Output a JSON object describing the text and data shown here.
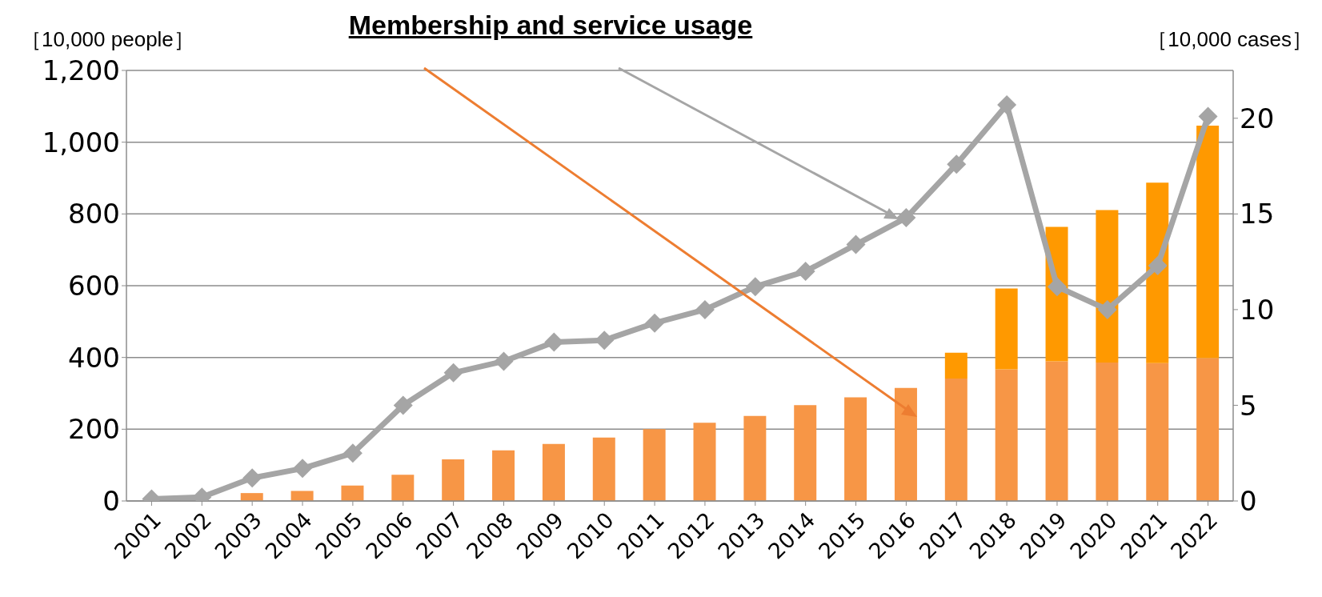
{
  "chart_data": {
    "type": "bar",
    "title": "Membership and service usage",
    "ylabel": "［10,000 people］",
    "y2label": "［10,000 cases］",
    "categories": [
      "2001",
      "2002",
      "2003",
      "2004",
      "2005",
      "2006",
      "2007",
      "2008",
      "2009",
      "2010",
      "2011",
      "2012",
      "2013",
      "2014",
      "2015",
      "2016",
      "2017",
      "2018",
      "2019",
      "2020",
      "2021",
      "2022"
    ],
    "stacked": true,
    "series": [
      {
        "color": "#f79646",
        "values": [
          null,
          null,
          22,
          28,
          43,
          73,
          116,
          141,
          159,
          177,
          200,
          218,
          237,
          267,
          289,
          315,
          341,
          367,
          389,
          386,
          384,
          398
        ]
      },
      {
        "color": "#ff9900",
        "values": [
          null,
          null,
          null,
          null,
          null,
          null,
          null,
          null,
          null,
          null,
          null,
          null,
          null,
          null,
          null,
          null,
          72,
          225,
          375,
          425,
          503,
          648
        ]
      },
      {
        "type": "line",
        "axis": "y2",
        "color": "#a5a5a5",
        "marker": "diamond",
        "line_style": "solid",
        "values": [
          0.1,
          0.2,
          1.2,
          1.7,
          2.5,
          5.0,
          6.7,
          7.3,
          8.3,
          8.4,
          9.3,
          10.0,
          11.2,
          12.0,
          13.4,
          14.8,
          17.6,
          20.7,
          11.2,
          10.0,
          12.3,
          20.1
        ]
      }
    ],
    "ylim": [
      0,
      1200
    ],
    "yticks": [
      0,
      200,
      400,
      600,
      800,
      {
        "value": 1000,
        "label": "1,000"
      },
      {
        "value": 1200,
        "label": "1,200"
      }
    ],
    "y2lim": [
      0,
      22.5
    ],
    "y2ticks": [
      0,
      5,
      10,
      15,
      20
    ],
    "grid": "y",
    "legend": false
  }
}
